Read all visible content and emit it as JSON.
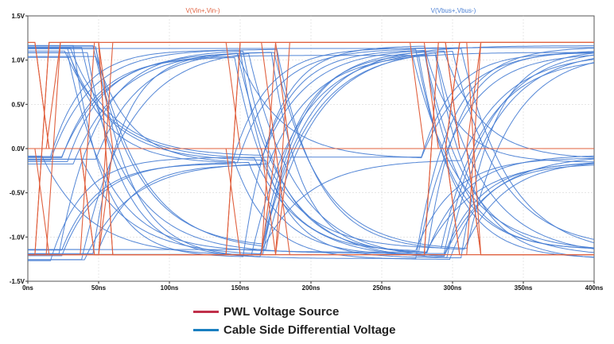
{
  "chart_data": {
    "type": "line",
    "title": "",
    "xlabel": "",
    "ylabel": "",
    "xlim": [
      0,
      400
    ],
    "ylim": [
      -1.5,
      1.5
    ],
    "x_unit": "ns",
    "grid": true,
    "x_ticks": [
      0,
      50,
      100,
      150,
      200,
      250,
      300,
      350,
      400
    ],
    "x_tick_labels": [
      "0ns",
      "50ns",
      "100ns",
      "150ns",
      "200ns",
      "250ns",
      "300ns",
      "350ns",
      "400ns"
    ],
    "y_ticks": [
      1.5,
      1.0,
      0.5,
      0.0,
      -0.5,
      -1.0,
      -1.5
    ],
    "y_tick_labels": [
      "1.5V",
      "1.0V",
      "0.5V",
      "0.0V",
      "-0.5V",
      "-1.0V",
      "-1.5V"
    ],
    "trace_labels": [
      {
        "text": "V(Vin+,Vin-)",
        "color": "#e0603e"
      },
      {
        "text": "V(Vbus+,Vbus-)",
        "color": "#4a7fd4"
      }
    ],
    "series": [
      {
        "name": "PWL Voltage Source",
        "color": "#e0603e",
        "high_level": 1.2,
        "low_level": -1.2,
        "mid_level": 0.0,
        "transition_times": [
          5,
          13,
          25,
          37,
          50,
          140,
          150,
          165,
          175,
          270,
          280,
          295,
          310
        ],
        "transition_duration": 10
      },
      {
        "name": "Cable Side Differential Voltage",
        "color": "#4a7fd4",
        "high_level": 1.1,
        "low_level": -1.2,
        "mid_level": -0.12,
        "crossing_times": [
          5,
          13,
          25,
          37,
          50,
          140,
          150,
          165,
          175,
          270,
          280,
          295,
          310
        ],
        "time_constant": 28
      }
    ],
    "legend": {
      "position": "bottom-left",
      "entries": [
        {
          "label": "PWL Voltage Source",
          "color": "#c0304a"
        },
        {
          "label": "Cable Side Differential Voltage",
          "color": "#1a7fc0"
        }
      ]
    }
  }
}
